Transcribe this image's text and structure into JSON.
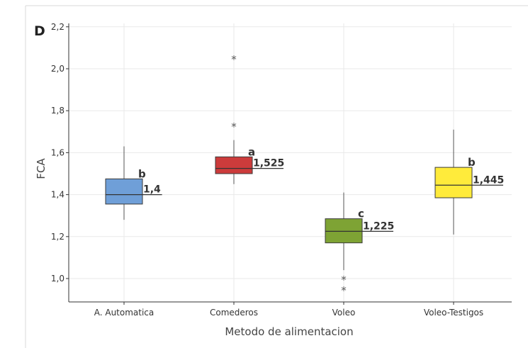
{
  "chart_data": {
    "type": "box",
    "panel_label": "D",
    "xlabel": "Metodo de alimentacion",
    "ylabel": "FCA",
    "ylim": [
      0.88,
      2.22
    ],
    "yticks": [
      1.0,
      1.2,
      1.4,
      1.6,
      1.8,
      2.0,
      2.2
    ],
    "ytick_labels": [
      "1,0",
      "1,2",
      "1,4",
      "1,6",
      "1,8",
      "2,0",
      "2,2"
    ],
    "grid": true,
    "categories": [
      "A. Automatica",
      "Comederos",
      "Voleo",
      "Voleo-Testigos"
    ],
    "boxes": [
      {
        "category": "A. Automatica",
        "whisker_low": 1.28,
        "q1": 1.355,
        "median": 1.4,
        "q3": 1.475,
        "whisker_high": 1.63,
        "outliers": [],
        "color": "#6f9fd8",
        "letter": "b",
        "median_label": "1,4"
      },
      {
        "category": "Comederos",
        "whisker_low": 1.45,
        "q1": 1.5,
        "median": 1.525,
        "q3": 1.58,
        "whisker_high": 1.66,
        "outliers": [
          1.73,
          2.05
        ],
        "color": "#cc3b3b",
        "letter": "a",
        "median_label": "1,525"
      },
      {
        "category": "Voleo",
        "whisker_low": 1.04,
        "q1": 1.17,
        "median": 1.225,
        "q3": 1.285,
        "whisker_high": 1.41,
        "outliers": [
          1.0,
          0.95
        ],
        "color": "#7ea334",
        "letter": "c",
        "median_label": "1,225"
      },
      {
        "category": "Voleo-Testigos",
        "whisker_low": 1.21,
        "q1": 1.385,
        "median": 1.445,
        "q3": 1.53,
        "whisker_high": 1.71,
        "outliers": [],
        "color": "#ffeb3b",
        "letter": "b",
        "median_label": "1,445"
      }
    ],
    "outlier_marker": "*"
  }
}
